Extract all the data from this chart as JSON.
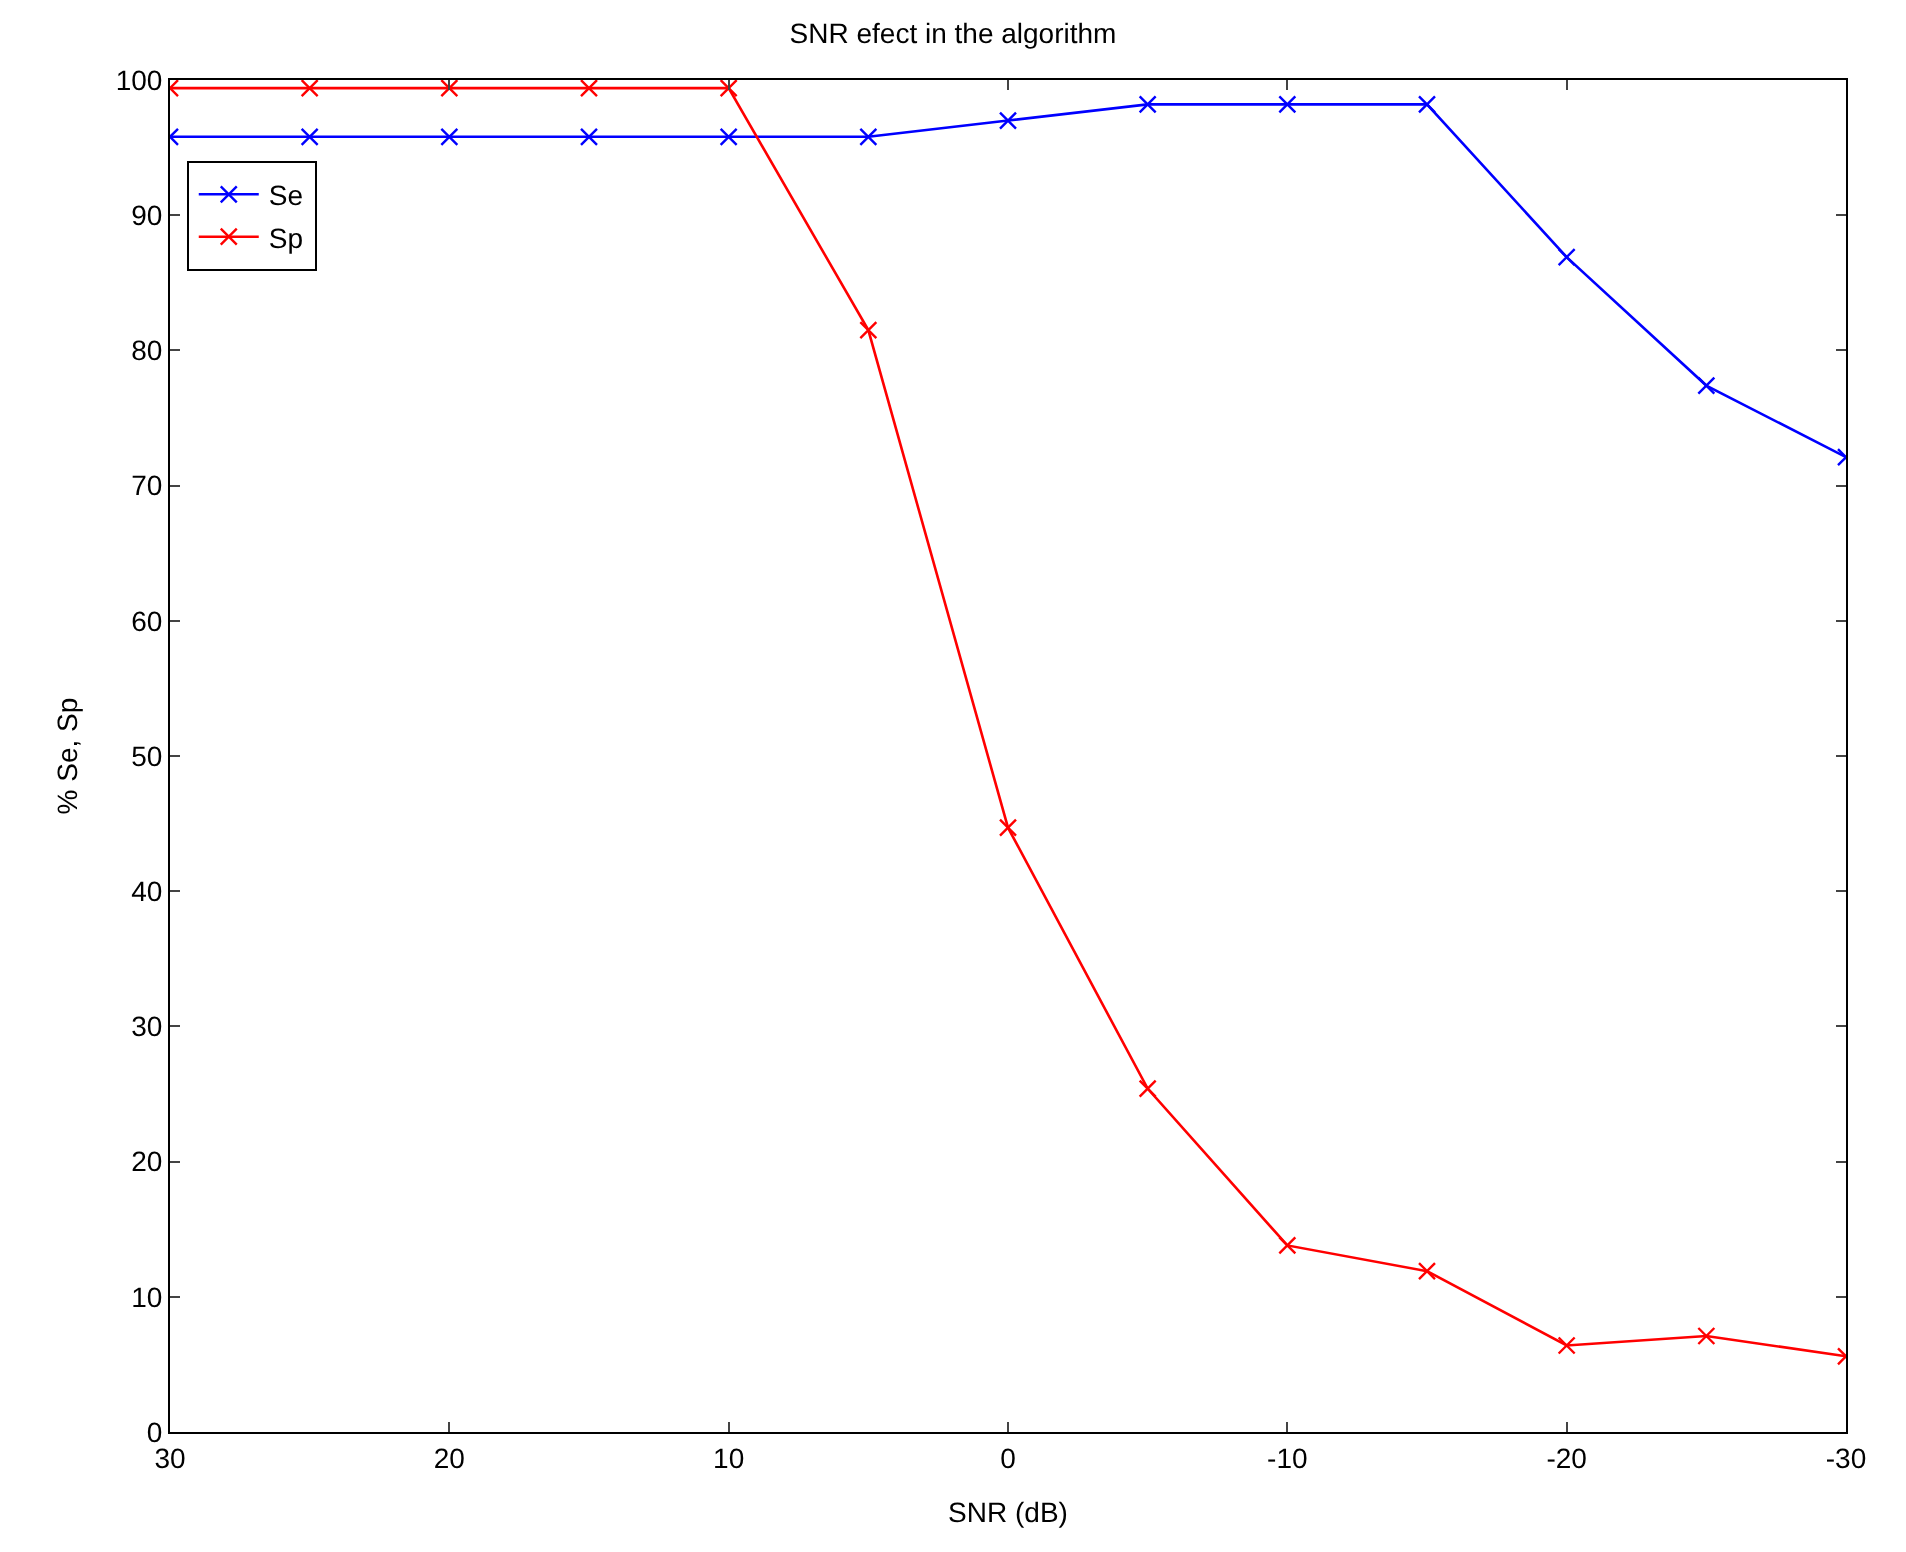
{
  "chart_data": {
    "type": "line",
    "title": "SNR efect in the algorithm",
    "xlabel": "SNR (dB)",
    "ylabel": "% Se, Sp",
    "x": [
      30,
      25,
      20,
      15,
      10,
      5,
      0,
      -5,
      -10,
      -15,
      -20,
      -25,
      -30
    ],
    "series": [
      {
        "name": "Se",
        "color": "#0000ff",
        "values": [
          95.8,
          95.8,
          95.8,
          95.8,
          95.8,
          95.8,
          97.0,
          98.2,
          98.2,
          98.2,
          86.9,
          77.4,
          72.1
        ]
      },
      {
        "name": "Sp",
        "color": "#ff0000",
        "values": [
          99.4,
          99.4,
          99.4,
          99.4,
          99.4,
          81.5,
          44.7,
          25.4,
          13.8,
          11.9,
          6.4,
          7.1,
          5.6
        ]
      }
    ],
    "xlim": [
      30,
      -30
    ],
    "xticks": [
      30,
      20,
      10,
      0,
      -10,
      -20,
      -30
    ],
    "ylim": [
      0,
      100
    ],
    "yticks": [
      0,
      10,
      20,
      30,
      40,
      50,
      60,
      70,
      80,
      90,
      100
    ],
    "legend": "top left",
    "marker": "cross",
    "line_style": "solid"
  }
}
